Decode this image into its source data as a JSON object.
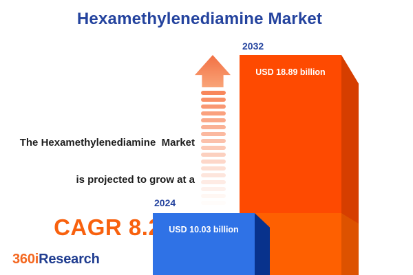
{
  "title": "Hexamethylenediamine Market",
  "tagline": {
    "line1": "The Hexamethylenediamine  Market",
    "line2": "is projected to grow at a",
    "cagr": "CAGR 8.22%"
  },
  "logo": {
    "prefix": "360i",
    "suffix": "Research"
  },
  "chart_data": {
    "type": "bar",
    "categories": [
      "2024",
      "2032"
    ],
    "values": [
      10.03,
      18.89
    ],
    "unit": "USD billion",
    "bar_labels": [
      "USD 10.03 billion",
      "USD 18.89 billion"
    ],
    "cagr_percent": 8.22,
    "title": "Hexamethylenediamine Market",
    "xlabel": "",
    "ylabel": "",
    "legend": "none",
    "grid": false,
    "style_notes": {
      "bar_style": "3d-cuboid",
      "year_label_position": "above-bar-left",
      "value_label_position": "inside-top-center",
      "growth_arrow": "striped upward arrow fading toward bottom"
    }
  },
  "colors": {
    "background": "#FFFFFF",
    "title_blue": "#24439E",
    "text_dark": "#1D1D1D",
    "cagr_orange": "#F8610E",
    "year_label_blue": "#24439E",
    "value_label_white": "#FFFFFF",
    "bar2024_front": "#2F72E6",
    "bar2024_side": "#08328C",
    "bar2032_front": "#FE4A01",
    "bar2032_side": "#D63E00",
    "bar2032_lower_front": "#FE6001",
    "bar2032_lower_side": "#DD5200",
    "arrow_head_top": "#F27043",
    "arrow_head_bottom": "#F9A478",
    "arrow_stripe": "#F8875B",
    "logo_orange": "#F4671F",
    "logo_blue": "#203D90"
  }
}
